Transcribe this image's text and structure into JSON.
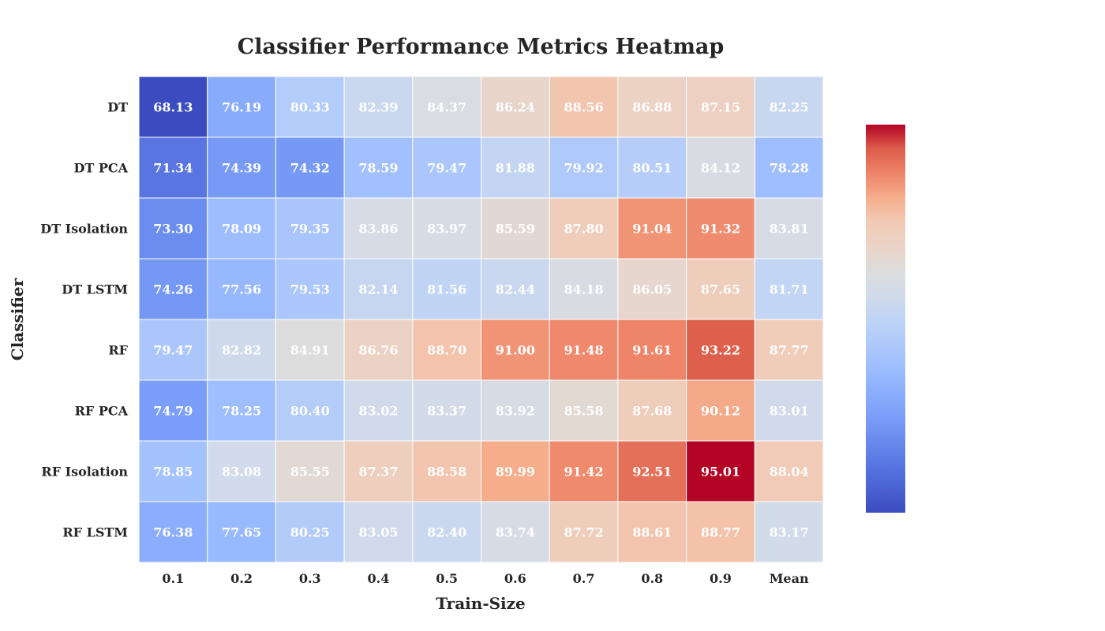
{
  "chart_data": {
    "type": "heatmap",
    "title": "Classifier Performance Metrics Heatmap",
    "xlabel": "Train-Size",
    "ylabel": "Classifier",
    "x_categories": [
      "0.1",
      "0.2",
      "0.3",
      "0.4",
      "0.5",
      "0.6",
      "0.7",
      "0.8",
      "0.9",
      "Mean"
    ],
    "y_categories": [
      "DT",
      "DT PCA",
      "DT Isolation",
      "DT LSTM",
      "RF",
      "RF PCA",
      "RF Isolation",
      "RF LSTM"
    ],
    "values": [
      [
        68.13,
        76.19,
        80.33,
        82.39,
        84.37,
        86.24,
        88.56,
        86.88,
        87.15,
        82.25
      ],
      [
        71.34,
        74.39,
        74.32,
        78.59,
        79.47,
        81.88,
        79.92,
        80.51,
        84.12,
        78.28
      ],
      [
        73.3,
        78.09,
        79.35,
        83.86,
        83.97,
        85.59,
        87.8,
        91.04,
        91.32,
        83.81
      ],
      [
        74.26,
        77.56,
        79.53,
        82.14,
        81.56,
        82.44,
        84.18,
        86.05,
        87.65,
        81.71
      ],
      [
        79.47,
        82.82,
        84.91,
        86.76,
        88.7,
        91.0,
        91.48,
        91.61,
        93.22,
        87.77
      ],
      [
        74.79,
        78.25,
        80.4,
        83.02,
        83.37,
        83.92,
        85.58,
        87.68,
        90.12,
        83.01
      ],
      [
        78.85,
        83.08,
        85.55,
        87.37,
        88.58,
        89.99,
        91.42,
        92.51,
        95.01,
        88.04
      ],
      [
        76.38,
        77.65,
        80.25,
        83.05,
        82.4,
        83.74,
        87.72,
        88.61,
        88.77,
        83.17
      ]
    ],
    "value_format": "2 decimals",
    "colormap": "coolwarm",
    "vmin": 68.13,
    "vmax": 95.01,
    "colorbar": true,
    "colorbar_ticks": false,
    "grid": false
  }
}
